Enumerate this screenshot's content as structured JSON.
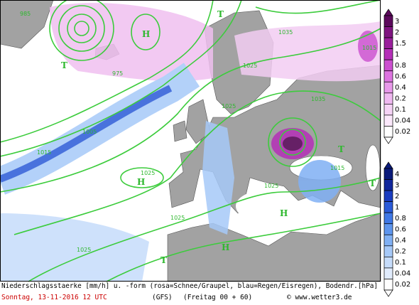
{
  "map": {
    "labels": [
      "985",
      "975",
      "1035",
      "1035",
      "1025",
      "1025",
      "1005",
      "1015",
      "1025",
      "1025",
      "1015",
      "1015",
      "1025",
      "1025",
      "H",
      "H",
      "H",
      "H",
      "T",
      "T",
      "T",
      "T",
      "T"
    ]
  },
  "snow_scale": {
    "labels": [
      3,
      2,
      1.5,
      1,
      0.8,
      0.6,
      0.4,
      0.2,
      0.1,
      0.04,
      0.02
    ],
    "colors": [
      "#5c0a5c",
      "#7f1480",
      "#9a1f9c",
      "#b52fb8",
      "#cc4fd0",
      "#dd74e0",
      "#e899ea",
      "#f0b9f1",
      "#f6d3f6",
      "#fbe8fb",
      "#ffffff"
    ]
  },
  "rain_scale": {
    "labels": [
      4,
      3,
      2,
      1,
      0.8,
      0.6,
      0.4,
      0.2,
      0.1,
      0.04,
      0.02
    ],
    "colors": [
      "#0a1a7a",
      "#10279c",
      "#1a3cc0",
      "#2a5ad8",
      "#3f78e6",
      "#5d95ee",
      "#80b0f4",
      "#a6c9f8",
      "#c6dcfb",
      "#e1ecfd",
      "#ffffff"
    ]
  },
  "footer": {
    "caption": "Niederschlagsstaerke [mm/h] u. -form (rosa=Schnee/Graupel, blau=Regen/Eisregen), Bodendr.[hPa]",
    "date": "Sonntag, 13-11-2016  12 UTC",
    "model": "(GFS)",
    "run": "(Freitag 00 + 60)",
    "credit": "© www.wetter3.de"
  }
}
